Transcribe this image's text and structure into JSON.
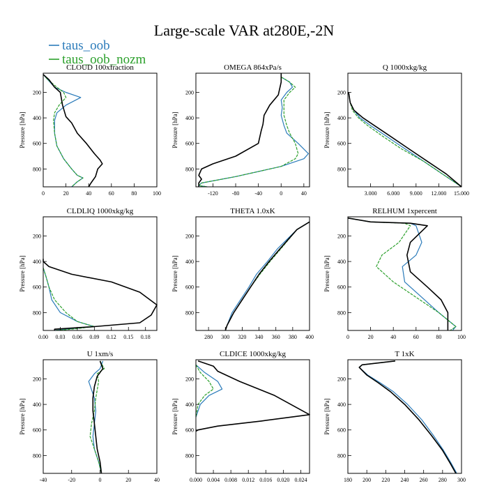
{
  "figure": {
    "title": "Large-scale VAR at280E,-2N",
    "legend": [
      {
        "label": "taus_oob",
        "color": "#2b7bba"
      },
      {
        "label": "taus_oob_nozm",
        "color": "#2ca02c"
      }
    ],
    "reference_color": "#000000"
  },
  "chart_data": [
    {
      "type": "line",
      "title": "CLOUD 100xfraction",
      "ylabel": "Pressure [hPa]",
      "xlim": [
        0,
        100
      ],
      "xticks": [
        "0",
        "20",
        "40",
        "60",
        "80",
        "100"
      ],
      "xtick_values": [
        0,
        20,
        40,
        60,
        80,
        100
      ],
      "ylim": [
        940,
        50
      ],
      "yticks": [
        200,
        400,
        600,
        800
      ],
      "series": [
        {
          "role": "reference",
          "x": [
            0,
            5,
            10,
            15,
            17,
            20,
            25,
            30,
            38,
            45,
            50,
            52,
            48,
            46,
            42,
            40
          ],
          "y": [
            60,
            100,
            160,
            200,
            300,
            390,
            440,
            520,
            600,
            680,
            730,
            760,
            800,
            860,
            910,
            940
          ]
        },
        {
          "name": "taus_oob",
          "x": [
            0,
            4,
            10,
            20,
            33,
            20,
            12,
            10,
            10,
            12,
            18,
            25,
            30,
            35,
            30,
            25
          ],
          "y": [
            60,
            100,
            160,
            200,
            240,
            300,
            360,
            420,
            520,
            620,
            720,
            800,
            850,
            870,
            900,
            940
          ]
        },
        {
          "name": "taus_oob_nozm",
          "x": [
            0,
            4,
            12,
            18,
            20,
            14,
            10,
            9,
            10,
            12,
            18,
            25,
            30,
            35,
            30,
            25
          ],
          "y": [
            60,
            100,
            160,
            200,
            240,
            300,
            360,
            420,
            520,
            620,
            720,
            800,
            850,
            870,
            900,
            940
          ]
        }
      ]
    },
    {
      "type": "line",
      "title": "OMEGA 864xPa/s",
      "ylabel": "Pressure [hPa]",
      "xlim": [
        -150,
        50
      ],
      "xticks": [
        "-120",
        "-80",
        "-40",
        "0",
        "40"
      ],
      "xtick_values": [
        -120,
        -80,
        -40,
        0,
        40
      ],
      "ylim": [
        940,
        50
      ],
      "yticks": [
        200,
        400,
        600,
        800
      ],
      "series": [
        {
          "role": "reference",
          "x": [
            0,
            0,
            -5,
            -20,
            -30,
            -32,
            -35,
            -40,
            -80,
            -120,
            -140,
            -145,
            -140,
            -145,
            -145
          ],
          "y": [
            50,
            120,
            220,
            300,
            380,
            450,
            500,
            600,
            700,
            760,
            800,
            850,
            880,
            910,
            940
          ]
        },
        {
          "name": "taus_oob",
          "x": [
            0,
            15,
            20,
            10,
            0,
            2,
            0,
            5,
            10,
            30,
            48,
            40,
            0,
            -80,
            -140,
            -145,
            -130
          ],
          "y": [
            80,
            120,
            160,
            200,
            260,
            320,
            380,
            460,
            520,
            600,
            680,
            720,
            780,
            860,
            910,
            930,
            940
          ]
        },
        {
          "name": "taus_oob_nozm",
          "x": [
            0,
            15,
            25,
            15,
            5,
            5,
            5,
            10,
            15,
            25,
            30,
            25,
            0,
            -80,
            -140,
            -145,
            -130
          ],
          "y": [
            80,
            120,
            160,
            200,
            260,
            320,
            380,
            460,
            520,
            600,
            680,
            720,
            780,
            860,
            910,
            930,
            940
          ]
        }
      ]
    },
    {
      "type": "line",
      "title": "Q 1000xkg/kg",
      "ylabel": "Pressure [hPa]",
      "xlim": [
        0,
        15
      ],
      "xticks": [
        "3.000",
        "6.000",
        "9.000",
        "12.000",
        "15.000"
      ],
      "xtick_values": [
        3,
        6,
        9,
        12,
        15
      ],
      "ylim": [
        940,
        50
      ],
      "yticks": [
        200,
        400,
        600,
        800
      ],
      "series": [
        {
          "role": "reference",
          "x": [
            0.1,
            0.3,
            0.8,
            2,
            3.5,
            5.5,
            8,
            10.5,
            13,
            15
          ],
          "y": [
            200,
            280,
            340,
            400,
            460,
            540,
            640,
            740,
            840,
            940
          ]
        },
        {
          "name": "taus_oob",
          "x": [
            0.1,
            0.3,
            0.8,
            1.6,
            3,
            5,
            7.5,
            10,
            12.5,
            15
          ],
          "y": [
            200,
            280,
            340,
            400,
            460,
            540,
            640,
            740,
            840,
            940
          ]
        },
        {
          "name": "taus_oob_nozm",
          "x": [
            0.1,
            0.3,
            0.6,
            1.4,
            2.6,
            4.5,
            7,
            10,
            12.5,
            15
          ],
          "y": [
            200,
            280,
            340,
            400,
            460,
            540,
            640,
            740,
            840,
            940
          ]
        }
      ]
    },
    {
      "type": "line",
      "title": "CLDLIQ 1000xkg/kg",
      "ylabel": "Pressure [hPa]",
      "xlim": [
        0,
        0.2
      ],
      "xticks": [
        "0.00",
        "0.03",
        "0.06",
        "0.09",
        "0.12",
        "0.15",
        "0.18"
      ],
      "xtick_values": [
        0,
        0.03,
        0.06,
        0.09,
        0.12,
        0.15,
        0.18
      ],
      "ylim": [
        940,
        50
      ],
      "yticks": [
        200,
        400,
        600,
        800
      ],
      "series": [
        {
          "role": "reference",
          "x": [
            0,
            0,
            0.01,
            0.05,
            0.12,
            0.17,
            0.2,
            0.19,
            0.17,
            0.09,
            0.02,
            0.02
          ],
          "y": [
            380,
            400,
            440,
            500,
            560,
            640,
            740,
            820,
            880,
            910,
            930,
            940
          ]
        },
        {
          "name": "taus_oob",
          "x": [
            0,
            0.005,
            0.01,
            0.015,
            0.03,
            0.06,
            0.09,
            0.04,
            0.02
          ],
          "y": [
            450,
            520,
            600,
            700,
            800,
            870,
            910,
            930,
            940
          ]
        },
        {
          "name": "taus_oob_nozm",
          "x": [
            0,
            0.005,
            0.01,
            0.02,
            0.04,
            0.06,
            0.09,
            0.05,
            0.02
          ],
          "y": [
            450,
            520,
            600,
            700,
            800,
            870,
            910,
            930,
            940
          ]
        }
      ]
    },
    {
      "type": "line",
      "title": "THETA 1.0xK",
      "ylabel": "Pressure [hPa]",
      "xlim": [
        265,
        400
      ],
      "xticks": [
        "280",
        "300",
        "320",
        "340",
        "360",
        "380",
        "400"
      ],
      "xtick_values": [
        280,
        300,
        320,
        340,
        360,
        380,
        400
      ],
      "ylim": [
        940,
        50
      ],
      "yticks": [
        200,
        400,
        600,
        800
      ],
      "series": [
        {
          "role": "reference",
          "x": [
            300,
            302,
            310,
            320,
            330,
            340,
            352,
            365,
            385,
            400
          ],
          "y": [
            940,
            900,
            800,
            700,
            600,
            500,
            400,
            300,
            150,
            90
          ]
        },
        {
          "name": "taus_oob",
          "x": [
            300,
            302,
            308,
            318,
            328,
            337,
            350,
            362,
            385,
            400
          ],
          "y": [
            940,
            900,
            800,
            700,
            600,
            500,
            400,
            300,
            150,
            90
          ]
        },
        {
          "name": "taus_oob_nozm",
          "x": [
            300,
            302,
            310,
            320,
            330,
            341,
            353,
            366,
            385,
            400
          ],
          "y": [
            940,
            900,
            800,
            700,
            600,
            500,
            400,
            300,
            150,
            90
          ]
        }
      ]
    },
    {
      "type": "line",
      "title": "RELHUM 1xpercent",
      "ylabel": "Pressure [hPa]",
      "xlim": [
        0,
        100
      ],
      "xticks": [
        "0",
        "20",
        "40",
        "60",
        "80",
        "100"
      ],
      "xtick_values": [
        0,
        20,
        40,
        60,
        80,
        100
      ],
      "ylim": [
        940,
        50
      ],
      "yticks": [
        200,
        400,
        600,
        800
      ],
      "series": [
        {
          "role": "reference",
          "x": [
            0,
            20,
            55,
            70,
            55,
            52,
            55,
            70,
            82,
            88,
            88,
            88
          ],
          "y": [
            60,
            90,
            100,
            120,
            250,
            350,
            480,
            600,
            700,
            800,
            900,
            940
          ]
        },
        {
          "name": "taus_oob",
          "x": [
            0,
            20,
            55,
            60,
            65,
            60,
            48,
            50,
            65,
            80,
            95,
            92
          ],
          "y": [
            60,
            90,
            100,
            120,
            250,
            350,
            440,
            560,
            680,
            800,
            910,
            940
          ]
        },
        {
          "name": "taus_oob_nozm",
          "x": [
            0,
            20,
            50,
            55,
            45,
            30,
            25,
            40,
            60,
            80,
            95,
            90
          ],
          "y": [
            60,
            90,
            100,
            120,
            250,
            350,
            440,
            560,
            680,
            800,
            910,
            940
          ]
        }
      ]
    },
    {
      "type": "line",
      "title": "U 1xm/s",
      "ylabel": "Pressure [hPa]",
      "xlim": [
        -40,
        40
      ],
      "xticks": [
        "-40",
        "-20",
        "0",
        "20",
        "40"
      ],
      "xtick_values": [
        -40,
        -20,
        0,
        20,
        40
      ],
      "ylim": [
        940,
        50
      ],
      "yticks": [
        200,
        400,
        600,
        800
      ],
      "series": [
        {
          "role": "reference",
          "x": [
            0,
            2,
            -2,
            -4,
            -5,
            -5,
            -4,
            -3,
            -2,
            0,
            1
          ],
          "y": [
            60,
            120,
            180,
            260,
            350,
            450,
            550,
            650,
            750,
            850,
            940
          ]
        },
        {
          "name": "taus_oob",
          "x": [
            2,
            0,
            -4,
            -8,
            -4,
            -3,
            -4,
            -5,
            -4,
            -1,
            1
          ],
          "y": [
            60,
            120,
            160,
            220,
            350,
            450,
            550,
            650,
            750,
            850,
            940
          ]
        },
        {
          "name": "taus_oob_nozm",
          "x": [
            0,
            3,
            -2,
            -1,
            -3,
            -4,
            -6,
            -7,
            -4,
            -1,
            1
          ],
          "y": [
            60,
            120,
            160,
            220,
            350,
            450,
            550,
            650,
            750,
            850,
            940
          ]
        }
      ]
    },
    {
      "type": "line",
      "title": "CLDICE 1000xkg/kg",
      "ylabel": "Pressure [hPa]",
      "xlim": [
        0,
        0.026
      ],
      "xticks": [
        "0.000",
        "0.004",
        "0.008",
        "0.012",
        "0.016",
        "0.020",
        "0.024"
      ],
      "xtick_values": [
        0,
        0.004,
        0.008,
        0.012,
        0.016,
        0.02,
        0.024
      ],
      "ylim": [
        940,
        50
      ],
      "yticks": [
        200,
        400,
        600,
        800
      ],
      "series": [
        {
          "role": "reference",
          "x": [
            0.0005,
            0.004,
            0.005,
            0.01,
            0.018,
            0.026,
            0.015,
            0.005,
            0.0005,
            0
          ],
          "y": [
            60,
            100,
            140,
            220,
            330,
            480,
            530,
            570,
            600,
            610
          ]
        },
        {
          "name": "taus_oob",
          "x": [
            0,
            0.002,
            0.005,
            0.006,
            0.003,
            0.001,
            0
          ],
          "y": [
            90,
            150,
            220,
            280,
            330,
            400,
            500
          ]
        },
        {
          "name": "taus_oob_nozm",
          "x": [
            0,
            0.001,
            0.003,
            0.004,
            0.002,
            0.0005,
            0
          ],
          "y": [
            90,
            150,
            220,
            280,
            330,
            400,
            500
          ]
        }
      ]
    },
    {
      "type": "line",
      "title": "T 1xK",
      "ylabel": "Pressure [hPa]",
      "xlim": [
        180,
        300
      ],
      "xticks": [
        "180",
        "200",
        "220",
        "240",
        "260",
        "280",
        "300"
      ],
      "xtick_values": [
        180,
        200,
        220,
        240,
        260,
        280,
        300
      ],
      "ylim": [
        940,
        50
      ],
      "yticks": [
        200,
        400,
        600,
        800
      ],
      "series": [
        {
          "role": "reference",
          "x": [
            230,
            195,
            192,
            200,
            212,
            225,
            240,
            255,
            268,
            280,
            288,
            294
          ],
          "y": [
            60,
            90,
            110,
            170,
            230,
            300,
            400,
            520,
            640,
            760,
            860,
            940
          ]
        },
        {
          "name": "taus_oob",
          "x": [
            230,
            195,
            192,
            201,
            214,
            228,
            243,
            258,
            270,
            281,
            289,
            295
          ],
          "y": [
            60,
            90,
            110,
            170,
            230,
            300,
            400,
            520,
            640,
            760,
            860,
            940
          ]
        },
        {
          "name": "taus_oob_nozm",
          "x": [
            230,
            195,
            192,
            200,
            212,
            225,
            240,
            255,
            268,
            280,
            288,
            294
          ],
          "y": [
            60,
            90,
            110,
            170,
            230,
            300,
            400,
            520,
            640,
            760,
            860,
            940
          ]
        }
      ]
    }
  ]
}
